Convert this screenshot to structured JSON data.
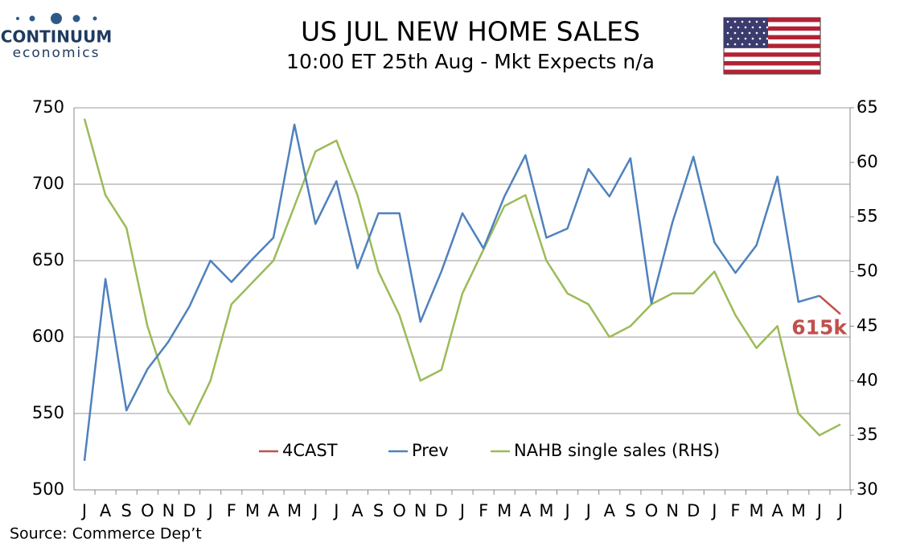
{
  "chart_data": {
    "type": "line",
    "brand": "CONTINUUM",
    "brand_sub": "economics",
    "title": "US JUL NEW HOME SALES",
    "subtitle": "10:00 ET 25th Aug - Mkt Expects n/a",
    "source": "Source: Commerce Dep’t",
    "categories": [
      "J",
      "A",
      "S",
      "O",
      "N",
      "D",
      "J",
      "F",
      "M",
      "A",
      "M",
      "J",
      "J",
      "A",
      "S",
      "O",
      "N",
      "D",
      "J",
      "F",
      "M",
      "A",
      "M",
      "J",
      "J",
      "A",
      "S",
      "O",
      "N",
      "D",
      "J",
      "F",
      "M",
      "A",
      "M",
      "J",
      "J"
    ],
    "series": [
      {
        "name": "4CAST",
        "color": "#c0504d",
        "values": [
          null,
          null,
          null,
          null,
          null,
          null,
          null,
          null,
          null,
          null,
          null,
          null,
          null,
          null,
          null,
          null,
          null,
          null,
          null,
          null,
          null,
          null,
          null,
          null,
          null,
          null,
          null,
          null,
          null,
          null,
          null,
          null,
          null,
          null,
          null,
          627,
          615
        ],
        "value_labels": [
          null,
          null,
          null,
          null,
          null,
          null,
          null,
          null,
          null,
          null,
          null,
          null,
          null,
          null,
          null,
          null,
          null,
          null,
          null,
          null,
          null,
          null,
          null,
          null,
          null,
          null,
          null,
          null,
          null,
          null,
          null,
          null,
          null,
          null,
          null,
          null,
          "615k"
        ]
      },
      {
        "name": "Prev",
        "color": "#4f81bd",
        "values": [
          519,
          638,
          552,
          579,
          597,
          620,
          650,
          636,
          651,
          665,
          739,
          674,
          702,
          645,
          681,
          681,
          610,
          643,
          681,
          658,
          692,
          719,
          665,
          671,
          710,
          692,
          717,
          622,
          675,
          718,
          662,
          642,
          660,
          705,
          623,
          627,
          null
        ]
      },
      {
        "name": "NAHB single sales (RHS)",
        "color": "#9bbb59",
        "axis": "y2",
        "values": [
          64,
          57,
          54,
          45,
          39,
          36,
          40,
          47,
          49,
          51,
          56,
          61,
          62,
          57,
          50,
          46,
          40,
          41,
          48,
          52,
          56,
          57,
          51,
          48,
          47,
          44,
          45,
          47,
          48,
          48,
          50,
          46,
          43,
          45,
          37,
          35,
          36
        ]
      }
    ],
    "ylim": [
      500,
      750
    ],
    "yticks": [
      500,
      550,
      600,
      650,
      700,
      750
    ],
    "y2lim": [
      30,
      65
    ],
    "y2ticks": [
      30,
      35,
      40,
      45,
      50,
      55,
      60,
      65
    ],
    "grid": true,
    "legend": "bottom"
  }
}
